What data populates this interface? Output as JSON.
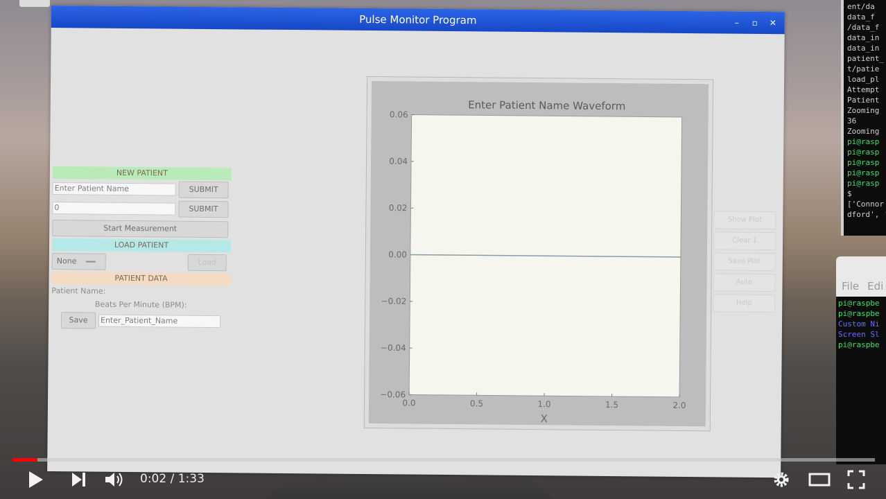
{
  "app": {
    "title": "Pulse Monitor Program",
    "controls": [
      "–",
      "▫",
      "✕"
    ]
  },
  "new_patient": {
    "header": "NEW PATIENT",
    "name_input": "Enter Patient Name",
    "submit_label": "SUBMIT",
    "id_input": "0",
    "submit2_label": "SUBMIT",
    "start_label": "Start Measurement"
  },
  "load_patient": {
    "header": "LOAD PATIENT",
    "select_value": "None",
    "load_label": "Load"
  },
  "patient_data": {
    "header": "PATIENT DATA",
    "name_label": "Patient Name:",
    "bpm_label": "Beats Per Minute (BPM):",
    "save_label": "Save",
    "file_input": "Enter_Patient_Name"
  },
  "side_buttons": [
    "Show Plot",
    "Clear 1",
    "Save Plot",
    "Auto",
    "Help"
  ],
  "chart_data": {
    "type": "line",
    "title": "Enter Patient Name Waveform",
    "xlabel": "X",
    "ylabel": "",
    "xlim": [
      0.0,
      2.0
    ],
    "ylim": [
      -0.06,
      0.06
    ],
    "x_ticks": [
      "0.0",
      "0.5",
      "1.0",
      "1.5",
      "2.0"
    ],
    "y_ticks": [
      "0.06",
      "0.04",
      "0.02",
      "0.00",
      "−0.02",
      "−0.04",
      "−0.06"
    ],
    "series": [
      {
        "x": [
          0.0,
          2.0
        ],
        "y": [
          0.0,
          0.0
        ]
      }
    ],
    "grid": false
  },
  "terminal_top": {
    "lines": [
      "ent/da",
      "data_f",
      "/data_f",
      "data_in",
      "data_in",
      "patient_",
      "t/patie",
      "load_pl",
      "Attempt",
      "Patient",
      "Zooming",
      "36",
      "Zooming",
      "pi@rasp",
      "pi@rasp",
      "pi@rasp",
      "pi@rasp",
      "pi@rasp",
      "$",
      "['Connor",
      "dford', '"
    ],
    "green_from": 13,
    "green_to": 17
  },
  "terminal_bottom": {
    "menu": [
      "File",
      "Edi"
    ],
    "lines": [
      {
        "text": "pi@raspbe",
        "color": "green"
      },
      {
        "text": "pi@raspbe",
        "color": "green"
      },
      {
        "text": "Custom Ni",
        "color": "blue"
      },
      {
        "text": "Screen Sl",
        "color": "blue"
      },
      {
        "text": "pi@raspbe",
        "color": "green"
      }
    ]
  },
  "video": {
    "time_text": "0:02 / 1:33",
    "progress": 0.029
  },
  "colors": {
    "titlebar": "#1e55d8",
    "progress": "#ff0000",
    "green_header": "#b9ebb9",
    "cyan_header": "#b6e8e8",
    "peach_header": "#f3dcc3"
  }
}
